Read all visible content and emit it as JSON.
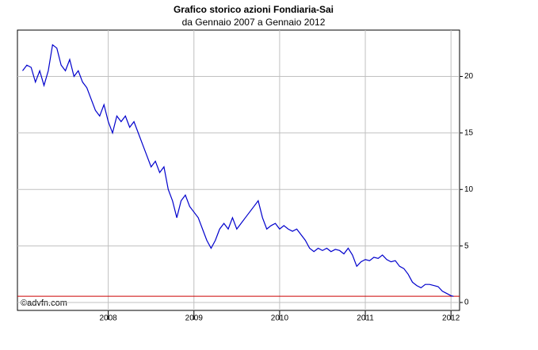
{
  "chart_data": {
    "type": "line",
    "title": "Grafico storico azioni Fondiaria-Sai",
    "subtitle": "da Gennaio 2007 a Gennaio 2012",
    "watermark": "©advfn.com",
    "x": [
      2007.0,
      2007.05,
      2007.1,
      2007.15,
      2007.2,
      2007.25,
      2007.3,
      2007.35,
      2007.4,
      2007.45,
      2007.5,
      2007.55,
      2007.6,
      2007.65,
      2007.7,
      2007.75,
      2007.8,
      2007.85,
      2007.9,
      2007.95,
      2008.0,
      2008.05,
      2008.1,
      2008.15,
      2008.2,
      2008.25,
      2008.3,
      2008.35,
      2008.4,
      2008.45,
      2008.5,
      2008.55,
      2008.6,
      2008.65,
      2008.7,
      2008.75,
      2008.8,
      2008.85,
      2008.9,
      2008.95,
      2009.0,
      2009.05,
      2009.1,
      2009.15,
      2009.2,
      2009.25,
      2009.3,
      2009.35,
      2009.4,
      2009.45,
      2009.5,
      2009.55,
      2009.6,
      2009.65,
      2009.7,
      2009.75,
      2009.8,
      2009.85,
      2009.9,
      2009.95,
      2010.0,
      2010.05,
      2010.1,
      2010.15,
      2010.2,
      2010.25,
      2010.3,
      2010.35,
      2010.4,
      2010.45,
      2010.5,
      2010.55,
      2010.6,
      2010.65,
      2010.7,
      2010.75,
      2010.8,
      2010.85,
      2010.9,
      2010.95,
      2011.0,
      2011.05,
      2011.1,
      2011.15,
      2011.2,
      2011.25,
      2011.3,
      2011.35,
      2011.4,
      2011.45,
      2011.5,
      2011.55,
      2011.6,
      2011.65,
      2011.7,
      2011.75,
      2011.8,
      2011.85,
      2011.9,
      2011.95,
      2012.0,
      2012.03
    ],
    "values": [
      20.5,
      21,
      20.8,
      19.5,
      20.5,
      19.2,
      20.5,
      22.8,
      22.5,
      21,
      20.5,
      21.5,
      20,
      20.5,
      19.5,
      19,
      18,
      17,
      16.5,
      17.5,
      16,
      15,
      16.5,
      16,
      16.5,
      15.5,
      16,
      15,
      14,
      13,
      12,
      12.5,
      11.5,
      12,
      10,
      9,
      7.5,
      9,
      9.5,
      8.5,
      8,
      7.5,
      6.5,
      5.5,
      4.8,
      5.5,
      6.5,
      7,
      6.5,
      7.5,
      6.5,
      7,
      7.5,
      8,
      8.5,
      9,
      7.5,
      6.5,
      6.8,
      7,
      6.5,
      6.8,
      6.5,
      6.3,
      6.5,
      6,
      5.5,
      4.8,
      4.5,
      4.8,
      4.6,
      4.8,
      4.5,
      4.7,
      4.6,
      4.3,
      4.8,
      4.2,
      3.2,
      3.6,
      3.8,
      3.7,
      4,
      3.9,
      4.2,
      3.8,
      3.6,
      3.7,
      3.2,
      3,
      2.5,
      1.8,
      1.5,
      1.3,
      1.6,
      1.6,
      1.5,
      1.4,
      1.0,
      0.8,
      0.6,
      0.55
    ],
    "color": "#0000cc",
    "reference_line": {
      "value": 0.55,
      "color": "#cc0000"
    },
    "xlim": [
      2006.94,
      2012.1
    ],
    "xticks": [
      2008,
      2009,
      2010,
      2011,
      2012
    ],
    "ylim": [
      -0.7,
      24.1
    ],
    "yticks": [
      0,
      5,
      10,
      15,
      20
    ],
    "grid": true
  }
}
